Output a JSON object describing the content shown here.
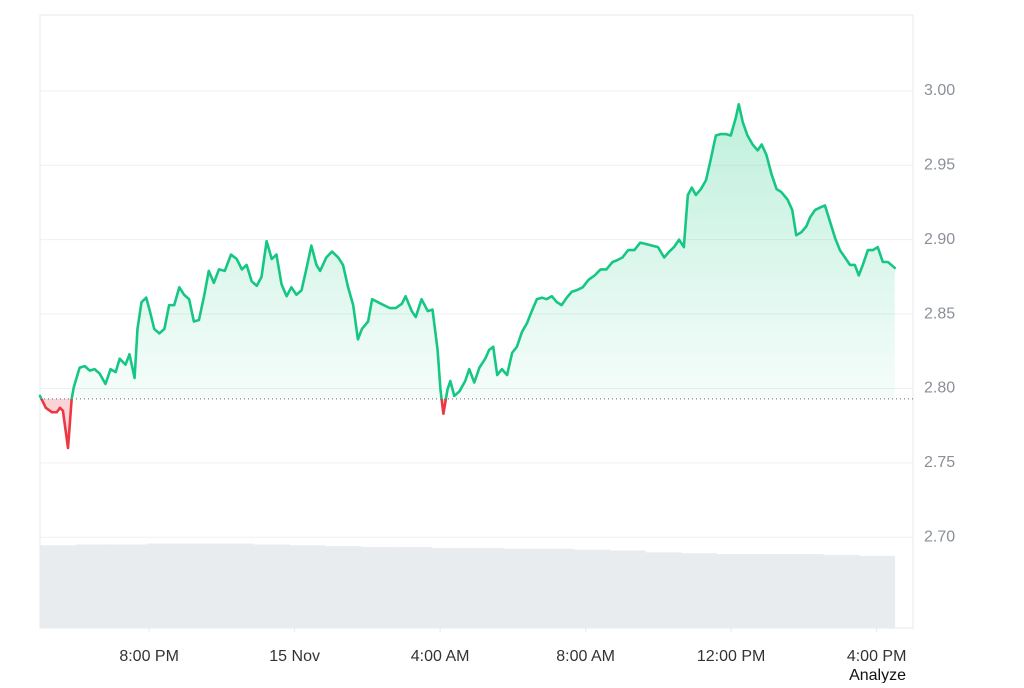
{
  "chart_data": {
    "type": "line",
    "x": [
      17.0,
      17.16,
      17.33,
      17.46,
      17.55,
      17.63,
      17.77,
      17.87,
      17.93,
      18.09,
      18.23,
      18.37,
      18.5,
      18.64,
      18.8,
      18.94,
      19.08,
      19.19,
      19.35,
      19.46,
      19.6,
      19.68,
      19.79,
      19.92,
      20.01,
      20.14,
      20.28,
      20.42,
      20.55,
      20.69,
      20.83,
      20.96,
      21.1,
      21.23,
      21.37,
      21.51,
      21.64,
      21.78,
      21.92,
      22.08,
      22.25,
      22.41,
      22.55,
      22.68,
      22.82,
      22.96,
      23.09,
      23.23,
      23.37,
      23.5,
      23.64,
      23.78,
      23.91,
      24.05,
      24.19,
      24.32,
      24.46,
      24.6,
      24.7,
      24.87,
      25.03,
      25.2,
      25.33,
      25.47,
      25.61,
      25.74,
      25.85,
      26.02,
      26.13,
      26.29,
      26.45,
      26.62,
      26.78,
      26.95,
      27.05,
      27.22,
      27.33,
      27.49,
      27.66,
      27.79,
      27.93,
      28.01,
      28.09,
      28.2,
      28.28,
      28.39,
      28.53,
      28.69,
      28.8,
      28.94,
      29.08,
      29.24,
      29.35,
      29.46,
      29.57,
      29.7,
      29.84,
      29.98,
      30.11,
      30.25,
      30.39,
      30.52,
      30.66,
      30.8,
      30.93,
      31.07,
      31.21,
      31.34,
      31.48,
      31.62,
      31.75,
      31.92,
      32.08,
      32.25,
      32.41,
      32.57,
      32.74,
      32.85,
      33.01,
      33.17,
      33.34,
      33.5,
      33.67,
      33.83,
      33.99,
      34.16,
      34.3,
      34.43,
      34.57,
      34.7,
      34.81,
      34.92,
      35.03,
      35.17,
      35.31,
      35.44,
      35.58,
      35.72,
      35.85,
      35.99,
      36.13,
      36.21,
      36.32,
      36.45,
      36.59,
      36.73,
      36.84,
      36.97,
      37.11,
      37.25,
      37.38,
      37.55,
      37.68,
      37.79,
      37.93,
      38.07,
      38.17,
      38.31,
      38.48,
      38.58,
      38.72,
      38.86,
      38.99,
      39.13,
      39.27,
      39.4,
      39.51,
      39.62,
      39.76,
      39.9,
      40.03,
      40.17,
      40.31,
      40.5
    ],
    "series": [
      {
        "color": "#16c784",
        "below_color": "#ea3943",
        "values": [
          2.795,
          2.787,
          2.784,
          2.784,
          2.787,
          2.785,
          2.76,
          2.793,
          2.801,
          2.814,
          2.815,
          2.812,
          2.813,
          2.81,
          2.803,
          2.813,
          2.811,
          2.82,
          2.816,
          2.823,
          2.807,
          2.84,
          2.858,
          2.861,
          2.853,
          2.84,
          2.837,
          2.84,
          2.856,
          2.856,
          2.868,
          2.863,
          2.86,
          2.845,
          2.846,
          2.862,
          2.879,
          2.871,
          2.88,
          2.879,
          2.89,
          2.887,
          2.88,
          2.883,
          2.872,
          2.869,
          2.875,
          2.899,
          2.887,
          2.89,
          2.87,
          2.862,
          2.868,
          2.863,
          2.866,
          2.88,
          2.896,
          2.883,
          2.879,
          2.888,
          2.892,
          2.888,
          2.883,
          2.868,
          2.856,
          2.833,
          2.84,
          2.845,
          2.86,
          2.858,
          2.856,
          2.854,
          2.854,
          2.857,
          2.862,
          2.852,
          2.848,
          2.86,
          2.852,
          2.853,
          2.826,
          2.799,
          2.783,
          2.799,
          2.805,
          2.795,
          2.798,
          2.805,
          2.813,
          2.804,
          2.814,
          2.82,
          2.826,
          2.828,
          2.809,
          2.813,
          2.809,
          2.824,
          2.828,
          2.838,
          2.844,
          2.852,
          2.86,
          2.861,
          2.86,
          2.862,
          2.858,
          2.856,
          2.861,
          2.865,
          2.866,
          2.868,
          2.873,
          2.876,
          2.88,
          2.88,
          2.885,
          2.886,
          2.888,
          2.893,
          2.893,
          2.898,
          2.897,
          2.896,
          2.895,
          2.888,
          2.892,
          2.895,
          2.9,
          2.895,
          2.93,
          2.935,
          2.93,
          2.934,
          2.94,
          2.954,
          2.97,
          2.971,
          2.971,
          2.97,
          2.982,
          2.991,
          2.979,
          2.97,
          2.964,
          2.96,
          2.964,
          2.957,
          2.944,
          2.934,
          2.932,
          2.927,
          2.92,
          2.903,
          2.905,
          2.909,
          2.915,
          2.92,
          2.922,
          2.923,
          2.912,
          2.901,
          2.893,
          2.888,
          2.883,
          2.883,
          2.876,
          2.883,
          2.893,
          2.893,
          2.895,
          2.885,
          2.885,
          2.881
        ]
      }
    ],
    "baseline": 2.793,
    "volume": {
      "color": "#e8ecef",
      "lim": [
        0,
        100
      ],
      "values": [
        94,
        95,
        95,
        96,
        96,
        96,
        95,
        94,
        93,
        92,
        92,
        91,
        91,
        90,
        90,
        89,
        88,
        86,
        85,
        84,
        84,
        84,
        83,
        82
      ]
    },
    "xlim": [
      17,
      41
    ],
    "xticks": [
      {
        "value": 20,
        "label": "8:00 PM"
      },
      {
        "value": 24,
        "label": "15 Nov"
      },
      {
        "value": 28,
        "label": "4:00 AM"
      },
      {
        "value": 32,
        "label": "8:00 AM"
      },
      {
        "value": 36,
        "label": "12:00 PM"
      },
      {
        "value": 40,
        "label": "4:00 PM"
      }
    ],
    "ylim": [
      2.639,
      3.051
    ],
    "yticks": [
      {
        "value": 2.7,
        "label": "2.70"
      },
      {
        "value": 2.75,
        "label": "2.75"
      },
      {
        "value": 2.8,
        "label": "2.80"
      },
      {
        "value": 2.85,
        "label": "2.85"
      },
      {
        "value": 2.9,
        "label": "2.90"
      },
      {
        "value": 2.95,
        "label": "2.95"
      },
      {
        "value": 3.0,
        "label": "3.00"
      }
    ],
    "grid": true
  },
  "link": "Analyze"
}
